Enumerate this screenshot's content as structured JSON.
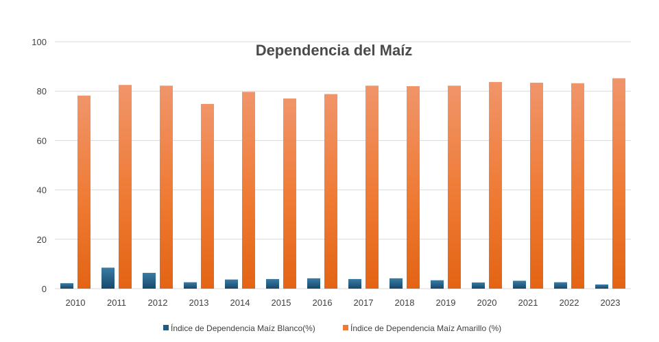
{
  "chart_data": {
    "type": "bar",
    "title": "Dependencia del Maíz",
    "xlabel": "",
    "ylabel": "",
    "ylim": [
      0,
      100
    ],
    "yticks": [
      0,
      20,
      40,
      60,
      80,
      100
    ],
    "grid": true,
    "legend_position": "bottom",
    "categories": [
      "2010",
      "2011",
      "2012",
      "2013",
      "2014",
      "2015",
      "2016",
      "2017",
      "2018",
      "2019",
      "2020",
      "2021",
      "2022",
      "2023"
    ],
    "series": [
      {
        "name": "Índice de Dependencia Maíz Blanco(%)",
        "color": "#1f5c80",
        "values": [
          2.2,
          8.5,
          6.4,
          2.6,
          3.7,
          3.9,
          4.2,
          3.9,
          4.2,
          3.4,
          2.5,
          3.2,
          2.6,
          1.7
        ]
      },
      {
        "name": "Índice de Dependencia Maíz Amarillo (%)",
        "color": "#ed7d31",
        "values": [
          78.2,
          82.5,
          82.2,
          74.8,
          79.7,
          77.0,
          78.8,
          82.2,
          82.0,
          82.2,
          83.7,
          83.4,
          83.2,
          85.2
        ]
      }
    ]
  }
}
